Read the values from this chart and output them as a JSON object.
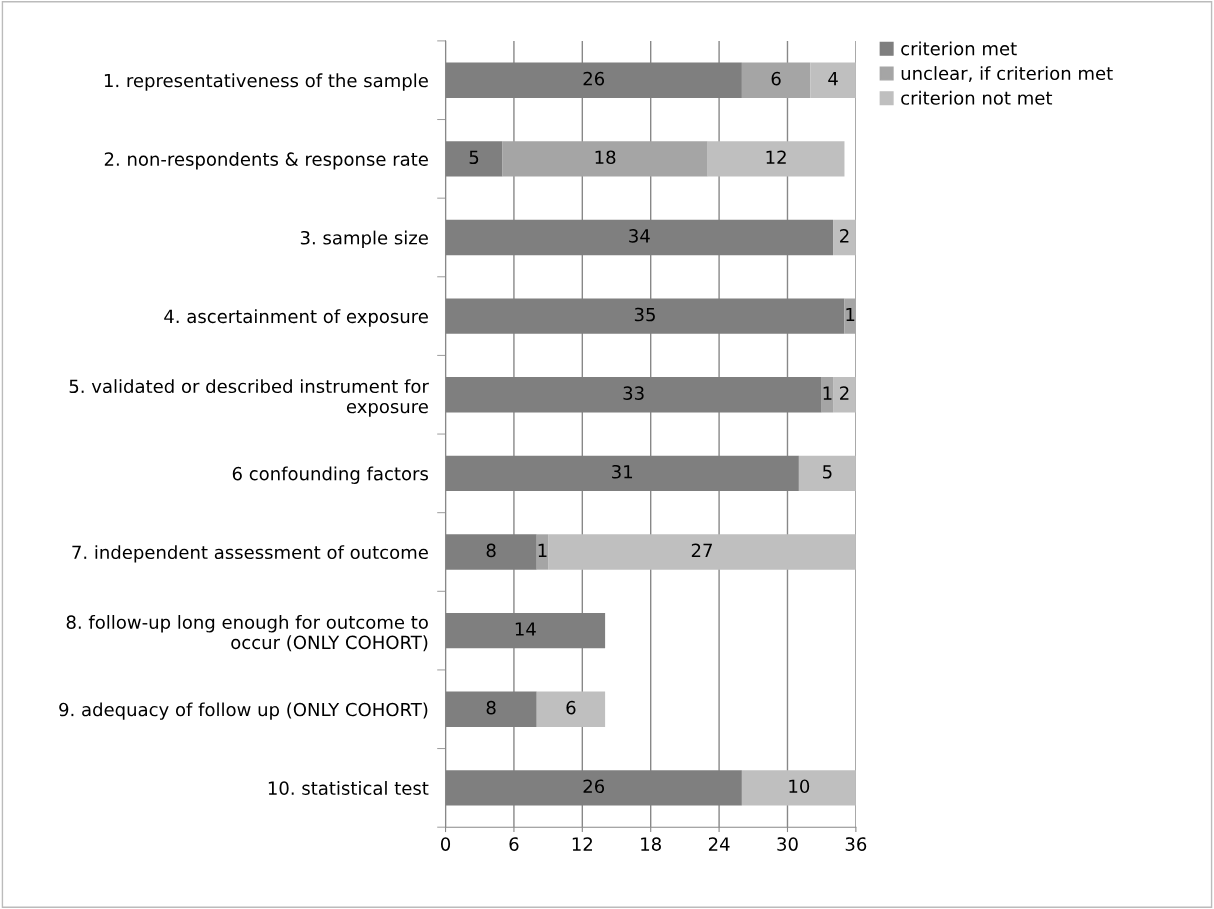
{
  "chart_data": {
    "type": "bar",
    "orientation": "horizontal",
    "stacked": true,
    "categories": [
      "1. representativeness of the sample",
      "2. non-respondents & response rate",
      "3. sample size",
      "4. ascertainment of exposure",
      "5. validated or described instrument for exposure",
      "6 confounding factors",
      "7. independent assessment of outcome",
      "8. follow-up long enough for outcome to occur (ONLY COHORT)",
      "9. adequacy of follow up (ONLY COHORT)",
      "10. statistical test"
    ],
    "series": [
      {
        "name": "criterion met",
        "color": "#7f7f7f",
        "values": [
          26,
          5,
          34,
          35,
          33,
          31,
          8,
          14,
          8,
          26
        ]
      },
      {
        "name": "unclear, if criterion met",
        "color": "#a5a5a5",
        "values": [
          6,
          18,
          null,
          1,
          1,
          null,
          1,
          null,
          null,
          null
        ]
      },
      {
        "name": "criterion not met",
        "color": "#bfbfbf",
        "values": [
          4,
          12,
          2,
          null,
          2,
          5,
          27,
          null,
          6,
          10
        ]
      }
    ],
    "xlim": [
      0,
      36
    ],
    "xticks": [
      0,
      6,
      12,
      18,
      24,
      30,
      36
    ],
    "grid": "x",
    "legend": "top right",
    "data_labels": true
  }
}
